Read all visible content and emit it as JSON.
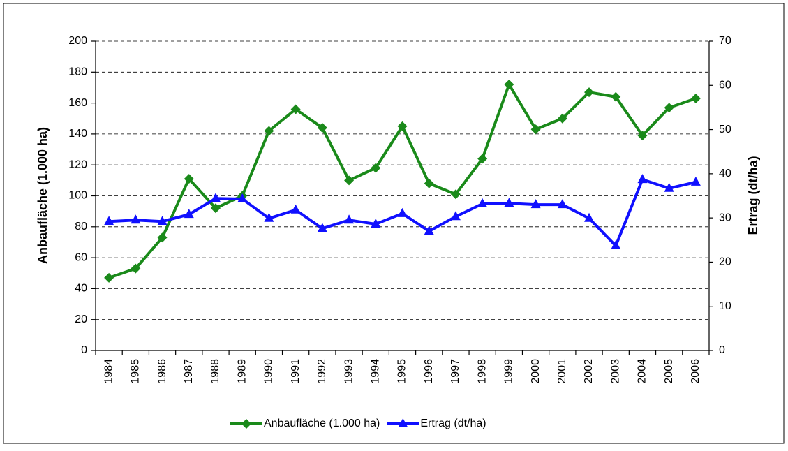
{
  "chart_data": {
    "type": "line",
    "categories": [
      "1984",
      "1985",
      "1986",
      "1987",
      "1988",
      "1989",
      "1990",
      "1991",
      "1992",
      "1993",
      "1994",
      "1995",
      "1996",
      "1997",
      "1998",
      "1999",
      "2000",
      "2001",
      "2002",
      "2003",
      "2004",
      "2005",
      "2006"
    ],
    "y_label": "Anbaufläche (1.000 ha)",
    "y2_label": "Ertrag (dt/ha)",
    "ylim": [
      0,
      200
    ],
    "yticks": [
      0,
      20,
      40,
      60,
      80,
      100,
      120,
      140,
      160,
      180,
      200
    ],
    "y2lim": [
      0,
      70
    ],
    "y2ticks": [
      0,
      10,
      20,
      30,
      40,
      50,
      60,
      70
    ],
    "grid": true,
    "legend": "bottom",
    "series": [
      {
        "name": "Anbaufläche (1.000 ha)",
        "color": "#1a8a1a",
        "marker": "diamond",
        "values": [
          47,
          53,
          73,
          111,
          92,
          100,
          142,
          156,
          144,
          110,
          118,
          145,
          108,
          101,
          124,
          172,
          143,
          150,
          167,
          164,
          139,
          157,
          163
        ]
      },
      {
        "name": "Ertrag (dt/ha)",
        "color": "#1010ff",
        "marker": "triangle",
        "axis": "y2",
        "values": [
          29.2,
          29.5,
          29.2,
          30.8,
          34.4,
          34.3,
          29.9,
          31.8,
          27.6,
          29.5,
          28.6,
          31.0,
          27.0,
          30.3,
          33.2,
          33.3,
          33.0,
          33.0,
          29.9,
          23.7,
          38.7,
          36.7,
          38.1
        ]
      }
    ]
  }
}
